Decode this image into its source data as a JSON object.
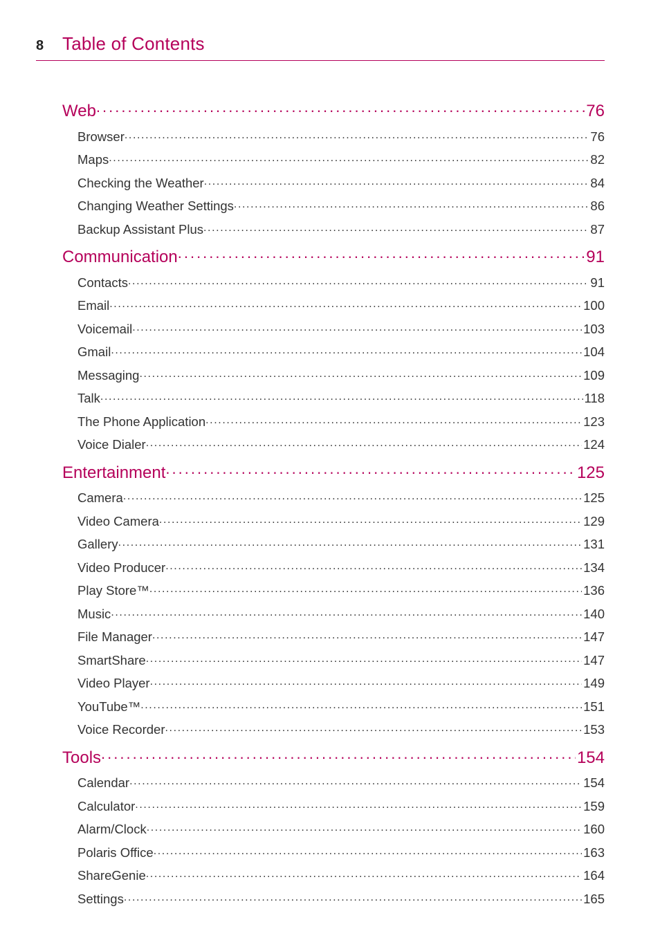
{
  "colors": {
    "accent": "#b5005a",
    "text": "#333333",
    "rule": "#b5005a",
    "background": "#ffffff"
  },
  "typography": {
    "header_title_fontsize": 26,
    "section_title_fontsize": 24,
    "subitem_fontsize": 18.5,
    "page_number_fontsize": 20,
    "font_family": "Helvetica Neue, Helvetica, Arial, sans-serif"
  },
  "header": {
    "page_number": "8",
    "title": "Table of Contents"
  },
  "sections": [
    {
      "title": "Web",
      "page": "76",
      "items": [
        {
          "label": "Browser",
          "page": "76"
        },
        {
          "label": "Maps",
          "page": "82"
        },
        {
          "label": "Checking the Weather",
          "page": "84"
        },
        {
          "label": "Changing Weather Settings",
          "page": "86"
        },
        {
          "label": "Backup Assistant Plus",
          "page": "87"
        }
      ]
    },
    {
      "title": "Communication",
      "page": "91",
      "items": [
        {
          "label": "Contacts",
          "page": "91"
        },
        {
          "label": "Email",
          "page": "100"
        },
        {
          "label": "Voicemail",
          "page": "103"
        },
        {
          "label": "Gmail",
          "page": "104"
        },
        {
          "label": "Messaging",
          "page": "109"
        },
        {
          "label": "Talk",
          "page": "118"
        },
        {
          "label": "The Phone Application",
          "page": "123"
        },
        {
          "label": "Voice Dialer",
          "page": "124"
        }
      ]
    },
    {
      "title": "Entertainment",
      "page": "125",
      "items": [
        {
          "label": "Camera",
          "page": "125"
        },
        {
          "label": "Video Camera",
          "page": "129"
        },
        {
          "label": "Gallery",
          "page": "131"
        },
        {
          "label": "Video Producer",
          "page": "134"
        },
        {
          "label": "Play Store™",
          "page": "136"
        },
        {
          "label": "Music",
          "page": "140"
        },
        {
          "label": "File Manager",
          "page": "147"
        },
        {
          "label": "SmartShare",
          "page": "147"
        },
        {
          "label": "Video Player",
          "page": "149"
        },
        {
          "label": "YouTube™",
          "page": "151"
        },
        {
          "label": "Voice Recorder",
          "page": "153"
        }
      ]
    },
    {
      "title": "Tools",
      "page": "154",
      "items": [
        {
          "label": "Calendar",
          "page": "154"
        },
        {
          "label": "Calculator",
          "page": "159"
        },
        {
          "label": "Alarm/Clock",
          "page": "160"
        },
        {
          "label": "Polaris Office",
          "page": "163"
        },
        {
          "label": "ShareGenie",
          "page": "164"
        },
        {
          "label": "Settings",
          "page": "165"
        }
      ]
    }
  ]
}
